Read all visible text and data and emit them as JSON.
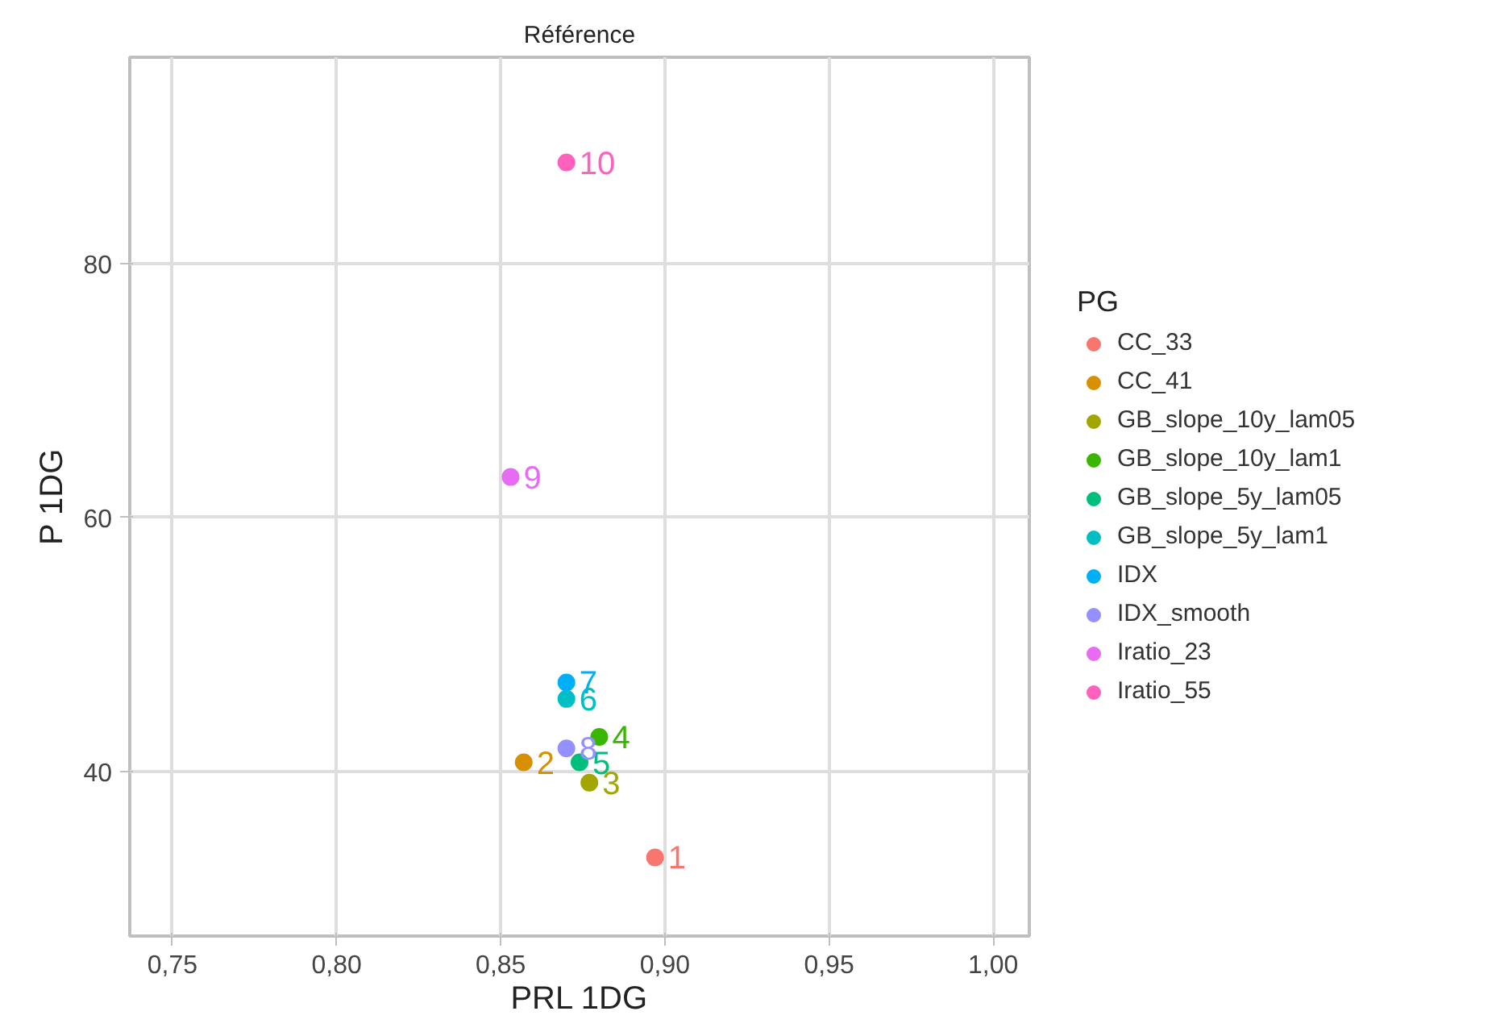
{
  "chart_data": {
    "type": "scatter",
    "title": "Référence",
    "xlabel": "PRL 1DG",
    "ylabel": "P 1DG",
    "legend_title": "PG",
    "legend": "right",
    "grid": true,
    "marker": "circle",
    "xlim": [
      0.737,
      1.011
    ],
    "ylim": [
      27.0,
      96.3
    ],
    "xticks": [
      {
        "value": 0.75,
        "label": "0,75"
      },
      {
        "value": 0.8,
        "label": "0,80"
      },
      {
        "value": 0.85,
        "label": "0,85"
      },
      {
        "value": 0.9,
        "label": "0,90"
      },
      {
        "value": 0.95,
        "label": "0,95"
      },
      {
        "value": 1.0,
        "label": "1,00"
      }
    ],
    "yticks": [
      40,
      60,
      80
    ],
    "series": [
      {
        "name": "CC_33",
        "color": "#f8766d",
        "x": [
          0.897
        ],
        "values": [
          33.2
        ]
      },
      {
        "name": "CC_41",
        "color": "#d89000",
        "x": [
          0.857
        ],
        "values": [
          40.7
        ]
      },
      {
        "name": "GB_slope_10y_lam05",
        "color": "#a3a500",
        "x": [
          0.877
        ],
        "values": [
          39.1
        ]
      },
      {
        "name": "GB_slope_10y_lam1",
        "color": "#39b600",
        "x": [
          0.88
        ],
        "values": [
          42.7
        ]
      },
      {
        "name": "GB_slope_5y_lam05",
        "color": "#00bf7d",
        "x": [
          0.874
        ],
        "values": [
          40.7
        ]
      },
      {
        "name": "GB_slope_5y_lam1",
        "color": "#00bfc4",
        "x": [
          0.87
        ],
        "values": [
          45.7
        ]
      },
      {
        "name": "IDX",
        "color": "#00b0f6",
        "x": [
          0.87
        ],
        "values": [
          47.0
        ]
      },
      {
        "name": "IDX_smooth",
        "color": "#9590ff",
        "x": [
          0.87
        ],
        "values": [
          41.8
        ]
      },
      {
        "name": "Iratio_23",
        "color": "#e76bf3",
        "x": [
          0.853
        ],
        "values": [
          63.2
        ]
      },
      {
        "name": "Iratio_55",
        "color": "#ff62bc",
        "x": [
          0.87
        ],
        "values": [
          88.0
        ]
      }
    ],
    "annotations": [
      {
        "text": "1",
        "x": 0.897,
        "y": 33.2
      },
      {
        "text": "2",
        "x": 0.857,
        "y": 40.7
      },
      {
        "text": "3",
        "x": 0.877,
        "y": 39.1
      },
      {
        "text": "4",
        "x": 0.88,
        "y": 42.7
      },
      {
        "text": "5",
        "x": 0.874,
        "y": 40.7
      },
      {
        "text": "6",
        "x": 0.87,
        "y": 45.7
      },
      {
        "text": "7",
        "x": 0.87,
        "y": 47.0
      },
      {
        "text": "8",
        "x": 0.87,
        "y": 41.8
      },
      {
        "text": "9",
        "x": 0.853,
        "y": 63.2
      },
      {
        "text": "10",
        "x": 0.87,
        "y": 88.0
      }
    ]
  }
}
